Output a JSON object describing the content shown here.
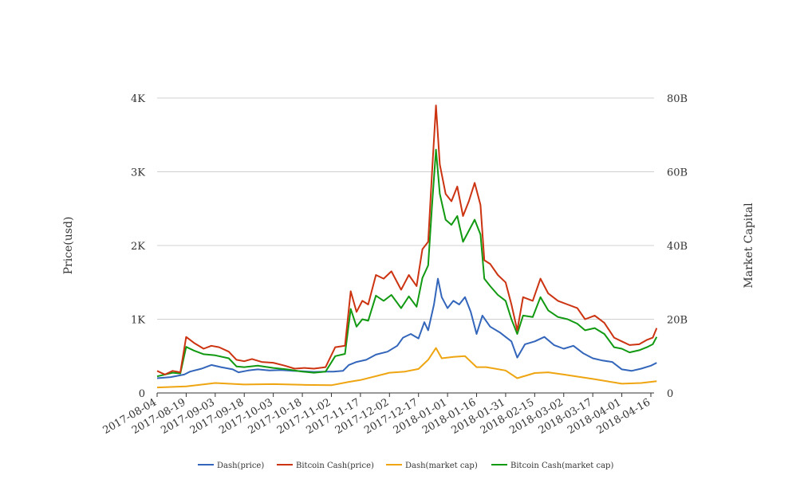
{
  "chart_data": {
    "type": "line",
    "title": "",
    "y_left_label": "Price(usd)",
    "y_right_label": "Market Capital",
    "y_left_range": [
      0,
      4000
    ],
    "y_right_range": [
      0,
      80000000000
    ],
    "y_left_ticks": [
      "0",
      "1K",
      "2K",
      "3K",
      "4K"
    ],
    "y_right_ticks": [
      "0",
      "20B",
      "40B",
      "60B",
      "80B"
    ],
    "x_ticks": [
      "2017-08-04",
      "2017-08-19",
      "2017-09-03",
      "2017-09-18",
      "2017-10-03",
      "2017-10-18",
      "2017-11-02",
      "2017-11-17",
      "2017-12-02",
      "2017-12-17",
      "2018-01-01",
      "2018-01-16",
      "2018-01-31",
      "2018-02-15",
      "2018-03-02",
      "2018-03-17",
      "2018-04-01",
      "2018-04-16"
    ],
    "grid": true,
    "legend_position": "bottom",
    "colors": {
      "dash_price": "#3366bb",
      "bch_price": "#cc3311",
      "dash_mcap": "#eea511",
      "bch_mcap": "#119911"
    },
    "series": [
      {
        "name": "Dash(price)",
        "axis": "left",
        "color": "#3366bb",
        "points": [
          [
            "2017-08-04",
            200
          ],
          [
            "2017-08-11",
            215
          ],
          [
            "2017-08-18",
            250
          ],
          [
            "2017-08-21",
            290
          ],
          [
            "2017-08-27",
            330
          ],
          [
            "2017-09-01",
            380
          ],
          [
            "2017-09-06",
            350
          ],
          [
            "2017-09-12",
            320
          ],
          [
            "2017-09-15",
            280
          ],
          [
            "2017-09-20",
            305
          ],
          [
            "2017-09-25",
            320
          ],
          [
            "2017-10-01",
            305
          ],
          [
            "2017-10-07",
            310
          ],
          [
            "2017-10-13",
            300
          ],
          [
            "2017-10-18",
            295
          ],
          [
            "2017-10-24",
            285
          ],
          [
            "2017-10-30",
            290
          ],
          [
            "2017-11-03",
            290
          ],
          [
            "2017-11-08",
            300
          ],
          [
            "2017-11-11",
            380
          ],
          [
            "2017-11-15",
            420
          ],
          [
            "2017-11-20",
            450
          ],
          [
            "2017-11-25",
            520
          ],
          [
            "2017-12-01",
            560
          ],
          [
            "2017-12-06",
            640
          ],
          [
            "2017-12-09",
            750
          ],
          [
            "2017-12-13",
            800
          ],
          [
            "2017-12-17",
            740
          ],
          [
            "2017-12-20",
            960
          ],
          [
            "2017-12-22",
            850
          ],
          [
            "2017-12-25",
            1200
          ],
          [
            "2017-12-27",
            1550
          ],
          [
            "2017-12-29",
            1300
          ],
          [
            "2018-01-01",
            1150
          ],
          [
            "2018-01-04",
            1250
          ],
          [
            "2018-01-07",
            1200
          ],
          [
            "2018-01-10",
            1300
          ],
          [
            "2018-01-13",
            1100
          ],
          [
            "2018-01-16",
            800
          ],
          [
            "2018-01-19",
            1050
          ],
          [
            "2018-01-23",
            900
          ],
          [
            "2018-01-28",
            820
          ],
          [
            "2018-01-31",
            760
          ],
          [
            "2018-02-03",
            700
          ],
          [
            "2018-02-06",
            480
          ],
          [
            "2018-02-10",
            660
          ],
          [
            "2018-02-15",
            700
          ],
          [
            "2018-02-20",
            760
          ],
          [
            "2018-02-25",
            650
          ],
          [
            "2018-03-02",
            600
          ],
          [
            "2018-03-07",
            640
          ],
          [
            "2018-03-12",
            540
          ],
          [
            "2018-03-17",
            470
          ],
          [
            "2018-03-22",
            440
          ],
          [
            "2018-03-27",
            420
          ],
          [
            "2018-04-01",
            320
          ],
          [
            "2018-04-06",
            300
          ],
          [
            "2018-04-11",
            330
          ],
          [
            "2018-04-16",
            370
          ],
          [
            "2018-04-19",
            410
          ]
        ]
      },
      {
        "name": "Bitcoin Cash(price)",
        "axis": "left",
        "color": "#cc3311",
        "points": [
          [
            "2017-08-04",
            300
          ],
          [
            "2017-08-08",
            250
          ],
          [
            "2017-08-12",
            300
          ],
          [
            "2017-08-16",
            280
          ],
          [
            "2017-08-19",
            760
          ],
          [
            "2017-08-23",
            680
          ],
          [
            "2017-08-28",
            600
          ],
          [
            "2017-09-01",
            640
          ],
          [
            "2017-09-05",
            620
          ],
          [
            "2017-09-10",
            560
          ],
          [
            "2017-09-14",
            450
          ],
          [
            "2017-09-18",
            430
          ],
          [
            "2017-09-22",
            460
          ],
          [
            "2017-09-27",
            420
          ],
          [
            "2017-10-03",
            410
          ],
          [
            "2017-10-09",
            370
          ],
          [
            "2017-10-14",
            330
          ],
          [
            "2017-10-19",
            340
          ],
          [
            "2017-10-24",
            330
          ],
          [
            "2017-10-30",
            350
          ],
          [
            "2017-11-04",
            620
          ],
          [
            "2017-11-09",
            640
          ],
          [
            "2017-11-12",
            1380
          ],
          [
            "2017-11-15",
            1100
          ],
          [
            "2017-11-18",
            1250
          ],
          [
            "2017-11-21",
            1200
          ],
          [
            "2017-11-25",
            1600
          ],
          [
            "2017-11-29",
            1550
          ],
          [
            "2017-12-03",
            1650
          ],
          [
            "2017-12-08",
            1400
          ],
          [
            "2017-12-12",
            1600
          ],
          [
            "2017-12-16",
            1450
          ],
          [
            "2017-12-19",
            1950
          ],
          [
            "2017-12-22",
            2050
          ],
          [
            "2017-12-24",
            3000
          ],
          [
            "2017-12-26",
            3900
          ],
          [
            "2017-12-28",
            3100
          ],
          [
            "2017-12-31",
            2700
          ],
          [
            "2018-01-03",
            2600
          ],
          [
            "2018-01-06",
            2800
          ],
          [
            "2018-01-09",
            2400
          ],
          [
            "2018-01-12",
            2600
          ],
          [
            "2018-01-15",
            2850
          ],
          [
            "2018-01-18",
            2550
          ],
          [
            "2018-01-20",
            1800
          ],
          [
            "2018-01-23",
            1750
          ],
          [
            "2018-01-27",
            1600
          ],
          [
            "2018-01-31",
            1500
          ],
          [
            "2018-02-03",
            1200
          ],
          [
            "2018-02-06",
            850
          ],
          [
            "2018-02-09",
            1300
          ],
          [
            "2018-02-14",
            1250
          ],
          [
            "2018-02-18",
            1550
          ],
          [
            "2018-02-22",
            1350
          ],
          [
            "2018-02-27",
            1250
          ],
          [
            "2018-03-04",
            1200
          ],
          [
            "2018-03-09",
            1150
          ],
          [
            "2018-03-13",
            1000
          ],
          [
            "2018-03-18",
            1050
          ],
          [
            "2018-03-23",
            950
          ],
          [
            "2018-03-28",
            750
          ],
          [
            "2018-04-01",
            700
          ],
          [
            "2018-04-05",
            650
          ],
          [
            "2018-04-10",
            660
          ],
          [
            "2018-04-14",
            720
          ],
          [
            "2018-04-17",
            750
          ],
          [
            "2018-04-19",
            880
          ]
        ]
      },
      {
        "name": "Dash(market cap)",
        "axis": "right",
        "color": "#eea511",
        "points": [
          [
            "2017-08-04",
            1500000000
          ],
          [
            "2017-08-19",
            1800000000
          ],
          [
            "2017-09-03",
            2700000000
          ],
          [
            "2017-09-18",
            2300000000
          ],
          [
            "2017-10-03",
            2400000000
          ],
          [
            "2017-10-18",
            2200000000
          ],
          [
            "2017-11-02",
            2100000000
          ],
          [
            "2017-11-11",
            3000000000
          ],
          [
            "2017-11-17",
            3500000000
          ],
          [
            "2017-12-02",
            5500000000
          ],
          [
            "2017-12-10",
            5800000000
          ],
          [
            "2017-12-17",
            6500000000
          ],
          [
            "2017-12-22",
            9000000000
          ],
          [
            "2017-12-26",
            12200000000
          ],
          [
            "2017-12-29",
            9400000000
          ],
          [
            "2018-01-04",
            9800000000
          ],
          [
            "2018-01-10",
            10000000000
          ],
          [
            "2018-01-16",
            7000000000
          ],
          [
            "2018-01-21",
            7000000000
          ],
          [
            "2018-01-31",
            6100000000
          ],
          [
            "2018-02-06",
            4000000000
          ],
          [
            "2018-02-15",
            5400000000
          ],
          [
            "2018-02-22",
            5600000000
          ],
          [
            "2018-03-02",
            5000000000
          ],
          [
            "2018-03-17",
            3800000000
          ],
          [
            "2018-04-01",
            2500000000
          ],
          [
            "2018-04-11",
            2700000000
          ],
          [
            "2018-04-19",
            3200000000
          ]
        ]
      },
      {
        "name": "Bitcoin Cash(market cap)",
        "axis": "right",
        "color": "#119911",
        "points": [
          [
            "2017-08-04",
            4500000000
          ],
          [
            "2017-08-12",
            5500000000
          ],
          [
            "2017-08-16",
            5300000000
          ],
          [
            "2017-08-19",
            12500000000
          ],
          [
            "2017-08-23",
            11500000000
          ],
          [
            "2017-08-28",
            10500000000
          ],
          [
            "2017-09-03",
            10200000000
          ],
          [
            "2017-09-10",
            9400000000
          ],
          [
            "2017-09-14",
            7200000000
          ],
          [
            "2017-09-18",
            7000000000
          ],
          [
            "2017-09-25",
            7400000000
          ],
          [
            "2017-10-03",
            6800000000
          ],
          [
            "2017-10-10",
            6400000000
          ],
          [
            "2017-10-18",
            5800000000
          ],
          [
            "2017-10-24",
            5500000000
          ],
          [
            "2017-10-30",
            5800000000
          ],
          [
            "2017-11-04",
            10000000000
          ],
          [
            "2017-11-09",
            10600000000
          ],
          [
            "2017-11-12",
            22800000000
          ],
          [
            "2017-11-15",
            18000000000
          ],
          [
            "2017-11-18",
            20000000000
          ],
          [
            "2017-11-21",
            19600000000
          ],
          [
            "2017-11-25",
            26400000000
          ],
          [
            "2017-11-29",
            25000000000
          ],
          [
            "2017-12-03",
            26600000000
          ],
          [
            "2017-12-08",
            23000000000
          ],
          [
            "2017-12-12",
            26200000000
          ],
          [
            "2017-12-16",
            23400000000
          ],
          [
            "2017-12-19",
            31200000000
          ],
          [
            "2017-12-22",
            34600000000
          ],
          [
            "2017-12-24",
            51000000000
          ],
          [
            "2017-12-26",
            66000000000
          ],
          [
            "2017-12-28",
            54000000000
          ],
          [
            "2017-12-31",
            47000000000
          ],
          [
            "2018-01-03",
            45600000000
          ],
          [
            "2018-01-06",
            48000000000
          ],
          [
            "2018-01-09",
            41000000000
          ],
          [
            "2018-01-12",
            44000000000
          ],
          [
            "2018-01-15",
            47000000000
          ],
          [
            "2018-01-18",
            43000000000
          ],
          [
            "2018-01-20",
            31000000000
          ],
          [
            "2018-01-23",
            29000000000
          ],
          [
            "2018-01-27",
            26600000000
          ],
          [
            "2018-01-31",
            25000000000
          ],
          [
            "2018-02-03",
            20000000000
          ],
          [
            "2018-02-06",
            16000000000
          ],
          [
            "2018-02-09",
            21000000000
          ],
          [
            "2018-02-14",
            20600000000
          ],
          [
            "2018-02-18",
            26000000000
          ],
          [
            "2018-02-22",
            22400000000
          ],
          [
            "2018-02-27",
            20600000000
          ],
          [
            "2018-03-04",
            20000000000
          ],
          [
            "2018-03-09",
            18800000000
          ],
          [
            "2018-03-13",
            17000000000
          ],
          [
            "2018-03-18",
            17600000000
          ],
          [
            "2018-03-23",
            16000000000
          ],
          [
            "2018-03-28",
            12400000000
          ],
          [
            "2018-04-01",
            12000000000
          ],
          [
            "2018-04-05",
            11000000000
          ],
          [
            "2018-04-10",
            11600000000
          ],
          [
            "2018-04-14",
            12400000000
          ],
          [
            "2018-04-17",
            13200000000
          ],
          [
            "2018-04-19",
            15200000000
          ]
        ]
      }
    ]
  }
}
